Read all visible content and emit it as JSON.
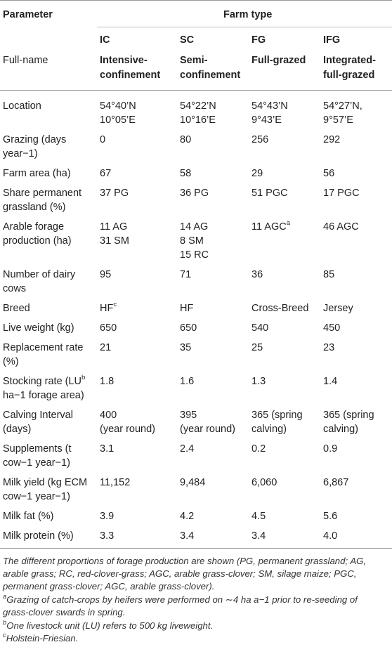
{
  "header": {
    "parameter_label": "Parameter",
    "farm_type_label": "Farm type",
    "fullname_label": "Full-name",
    "codes": [
      "IC",
      "SC",
      "FG",
      "IFG"
    ],
    "fullnames": [
      [
        "Intensive-",
        "confinement"
      ],
      [
        "Semi-",
        "confinement"
      ],
      [
        "Full-grazed"
      ],
      [
        "Integrated-",
        "full-grazed"
      ]
    ]
  },
  "rows": [
    {
      "param": [
        "Location"
      ],
      "values": [
        [
          "54°40’N",
          "10°05’E"
        ],
        [
          "54°22’N",
          "10°16’E"
        ],
        [
          "54°43’N",
          "9°43’E"
        ],
        [
          "54°27’N,",
          "9°57’E"
        ]
      ]
    },
    {
      "param": [
        "Grazing (days",
        "year−1)"
      ],
      "values": [
        [
          "0"
        ],
        [
          "80"
        ],
        [
          "256"
        ],
        [
          "292"
        ]
      ]
    },
    {
      "param": [
        "Farm area (ha)"
      ],
      "values": [
        [
          "67"
        ],
        [
          "58"
        ],
        [
          "29"
        ],
        [
          "56"
        ]
      ]
    },
    {
      "param": [
        "Share permanent",
        "grassland (%)"
      ],
      "values": [
        [
          "37 PG"
        ],
        [
          "36 PG"
        ],
        [
          "51 PGC"
        ],
        [
          "17 PGC"
        ]
      ]
    },
    {
      "param": [
        "Arable forage",
        "production (ha)"
      ],
      "values": [
        [
          "11 AG",
          "31 SM"
        ],
        [
          "14 AG",
          "8 SM",
          "15 RC"
        ],
        [
          "11 AGC"
        ],
        [
          "46 AGC"
        ]
      ]
    },
    {
      "param": [
        "Number of dairy",
        "cows"
      ],
      "values": [
        [
          "95"
        ],
        [
          "71"
        ],
        [
          "36"
        ],
        [
          "85"
        ]
      ]
    },
    {
      "param": [
        "Breed"
      ],
      "values": [
        [
          "HF"
        ],
        [
          "HF"
        ],
        [
          "Cross-Breed"
        ],
        [
          "Jersey"
        ]
      ]
    },
    {
      "param": [
        "Live weight (kg)"
      ],
      "values": [
        [
          "650"
        ],
        [
          "650"
        ],
        [
          "540"
        ],
        [
          "450"
        ]
      ]
    },
    {
      "param": [
        "Replacement rate",
        "(%)"
      ],
      "values": [
        [
          "21"
        ],
        [
          "35"
        ],
        [
          "25"
        ],
        [
          "23"
        ]
      ]
    },
    {
      "param": [
        "Stocking rate (LU",
        "ha−1 forage area)"
      ],
      "values": [
        [
          "1.8"
        ],
        [
          "1.6"
        ],
        [
          "1.3"
        ],
        [
          "1.4"
        ]
      ]
    },
    {
      "param": [
        "Calving Interval",
        "(days)"
      ],
      "values": [
        [
          "400",
          "(year round)"
        ],
        [
          "395",
          "(year round)"
        ],
        [
          "365 (spring",
          "calving)"
        ],
        [
          "365 (spring",
          "calving)"
        ]
      ]
    },
    {
      "param": [
        "Supplements (t",
        "cow−1 year−1)"
      ],
      "values": [
        [
          "3.1"
        ],
        [
          "2.4"
        ],
        [
          "0.2"
        ],
        [
          "0.9"
        ]
      ]
    },
    {
      "param": [
        "Milk yield (kg ECM",
        "cow−1 year−1)"
      ],
      "values": [
        [
          "11,152"
        ],
        [
          "9,484"
        ],
        [
          "6,060"
        ],
        [
          "6,867"
        ]
      ]
    },
    {
      "param": [
        "Milk fat (%)"
      ],
      "values": [
        [
          "3.9"
        ],
        [
          "4.2"
        ],
        [
          "4.5"
        ],
        [
          "5.6"
        ]
      ]
    },
    {
      "param": [
        "Milk protein (%)"
      ],
      "values": [
        [
          "3.3"
        ],
        [
          "3.4"
        ],
        [
          "3.4"
        ],
        [
          "4.0"
        ]
      ]
    }
  ],
  "sup_marks": {
    "a": "a",
    "b": "b",
    "c": "c"
  },
  "footnotes": {
    "main": [
      "The different proportions of forage production are shown (PG, permanent grassland; AG,",
      "arable grass; RC, red-clover-grass; AGC, arable grass-clover; SM, silage maize; PGC,",
      "permanent grass-clover; AGC, arable grass-clover)."
    ],
    "a": [
      "Grazing of catch-crops by heifers were performed on ∼4 ha a−1 prior to re-seeding of",
      "grass-clover swards in spring."
    ],
    "b": "One livestock unit (LU) refers to 500 kg liveweight.",
    "c": "Holstein-Friesian."
  },
  "colors": {
    "text": "#222222",
    "rule": "#9a9a9a"
  }
}
